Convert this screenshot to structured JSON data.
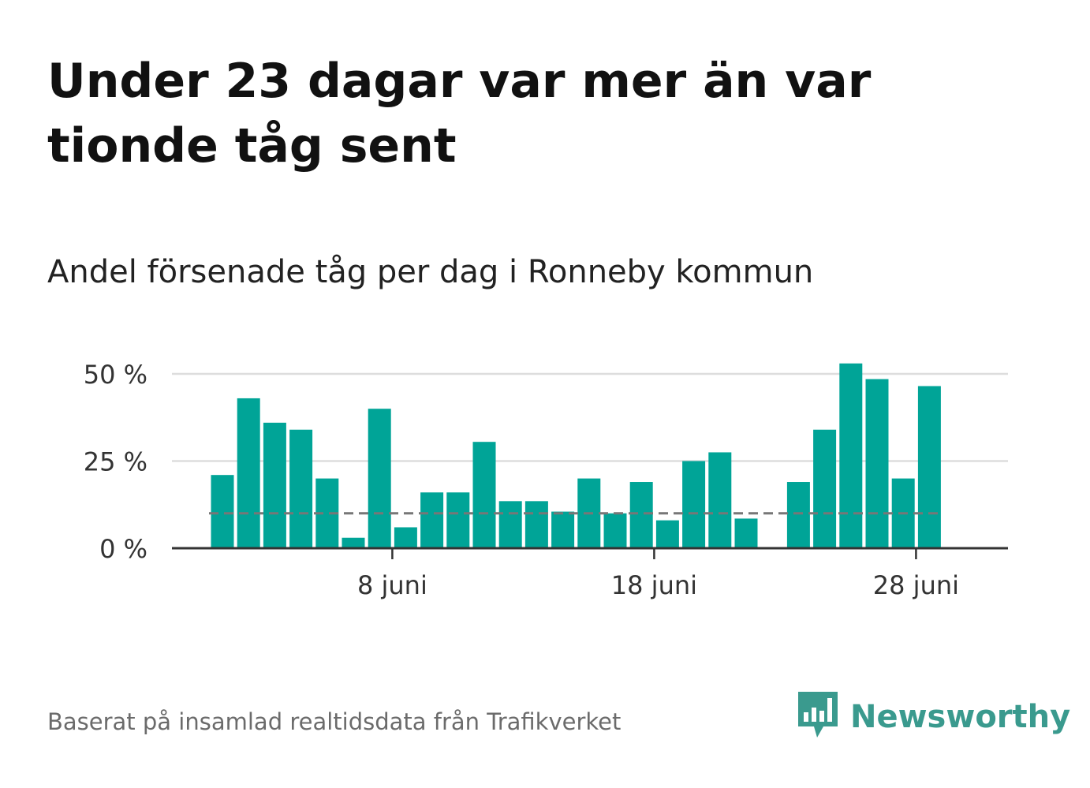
{
  "header": {
    "title": "Under 23 dagar var mer än var tionde tåg sent",
    "subtitle": "Andel försenade tåg per dag i Ronneby kommun"
  },
  "footer": {
    "source": "Baserat på insamlad realtidsdata från Trafikverket",
    "brand": "Newsworthy"
  },
  "colors": {
    "bar": "#00a497",
    "reference_line": "#777777",
    "grid": "#dddddd",
    "axis": "#333333",
    "brand": "#3a9a8e"
  },
  "chart_data": {
    "type": "bar",
    "x": [
      1,
      2,
      3,
      4,
      5,
      6,
      7,
      8,
      9,
      10,
      11,
      12,
      13,
      14,
      15,
      16,
      17,
      18,
      19,
      20,
      21,
      22,
      23,
      24,
      25,
      26,
      27,
      28,
      29
    ],
    "x_unit": "dag i juni",
    "values": [
      21,
      43,
      36,
      34,
      20,
      3,
      40,
      6,
      16,
      16,
      30.5,
      13.5,
      13.5,
      10.5,
      20,
      10,
      19,
      8,
      25,
      27.5,
      8.5,
      null,
      19,
      34,
      53,
      48.5,
      20,
      46.5,
      null
    ],
    "reference_line": 10,
    "xticks": [
      {
        "day": 8,
        "label": "8 juni"
      },
      {
        "day": 18,
        "label": "18 juni"
      },
      {
        "day": 28,
        "label": "28 juni"
      }
    ],
    "yticks": [
      {
        "value": 0,
        "label": "0 %"
      },
      {
        "value": 25,
        "label": "25 %"
      },
      {
        "value": 50,
        "label": "50 %"
      }
    ],
    "ylim": [
      0,
      50
    ],
    "grid": true,
    "legend": "none"
  }
}
